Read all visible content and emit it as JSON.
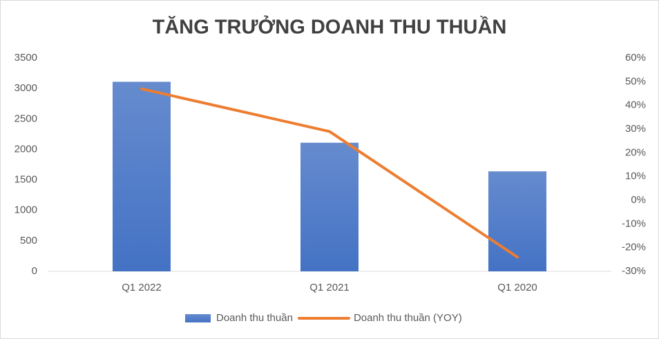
{
  "chart_data": {
    "type": "combo",
    "title": "TĂNG TRƯỞNG DOANH THU THUẦN",
    "categories": [
      "Q1 2022",
      "Q1 2021",
      "Q1 2020"
    ],
    "series": [
      {
        "name": "Doanh thu thuần",
        "type": "bar",
        "color": "#4472c4",
        "values": [
          3110,
          2110,
          1640
        ]
      },
      {
        "name": "Doanh thu thuần (YOY)",
        "type": "line",
        "axis": "y2",
        "color": "#ed7d31",
        "values": [
          47,
          29,
          -24
        ]
      }
    ],
    "ylim": [
      0,
      3500
    ],
    "yticks": [
      0,
      500,
      1000,
      1500,
      2000,
      2500,
      3000,
      3500
    ],
    "y2lim": [
      -30,
      60
    ],
    "y2ticks": [
      {
        "value": -30,
        "label": "-30%"
      },
      {
        "value": -20,
        "label": "-20%"
      },
      {
        "value": -10,
        "label": "-10%"
      },
      {
        "value": 0,
        "label": "0%"
      },
      {
        "value": 10,
        "label": "10%"
      },
      {
        "value": 20,
        "label": "20%"
      },
      {
        "value": 30,
        "label": "30%"
      },
      {
        "value": 40,
        "label": "40%"
      },
      {
        "value": 50,
        "label": "50%"
      },
      {
        "value": 60,
        "label": "60%"
      }
    ],
    "grid": false,
    "legend": "bottom"
  }
}
